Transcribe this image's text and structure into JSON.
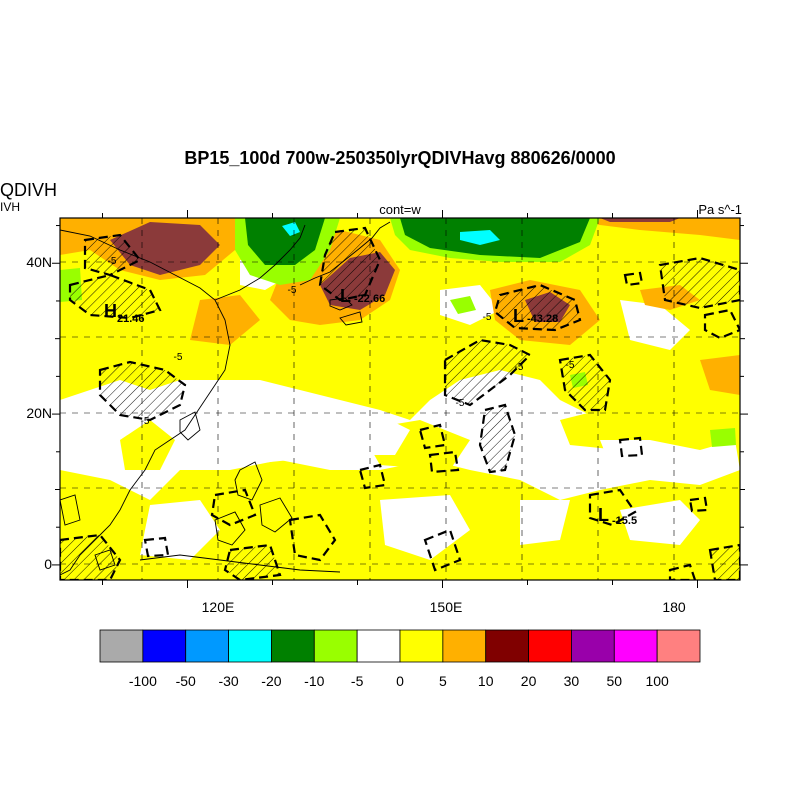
{
  "title": "BP15_100d 700w-250350lyrQDIVHavg  880626/0000",
  "field_label_top": "QDIVH",
  "field_label_sub": "IVH",
  "contour_label": "cont=w",
  "units": "Pa s^-1",
  "axes": {
    "x_ticks": [
      {
        "value": 120,
        "label": "120E"
      },
      {
        "value": 150,
        "label": "150E"
      },
      {
        "value": 180,
        "label": "180"
      }
    ],
    "y_ticks": [
      {
        "value": 0,
        "label": "0"
      },
      {
        "value": 20,
        "label": "20N"
      },
      {
        "value": 40,
        "label": "40N"
      }
    ],
    "lon_range": [
      105,
      185
    ],
    "lat_range": [
      -2,
      46
    ],
    "gridlines": true
  },
  "colorbar": {
    "labels": [
      "-100",
      "-50",
      "-30",
      "-20",
      "-10",
      "-5",
      "0",
      "5",
      "10",
      "20",
      "30",
      "50",
      "100"
    ],
    "colors": [
      "#AAAAAA",
      "#0000FF",
      "#0099FF",
      "#00FFFF",
      "#008000",
      "#99FF00",
      "#FFFFFF",
      "#FFFF00",
      "#FFB000",
      "#800000",
      "#FF0000",
      "#9900AA",
      "#FF00FF",
      "#FF8080"
    ]
  },
  "annotations": [
    {
      "kind": "H",
      "value": "21.46"
    },
    {
      "kind": "L",
      "value": "-22.66"
    },
    {
      "kind": "L",
      "value": "-43.28"
    },
    {
      "kind": "L",
      "value": "-15.5"
    }
  ],
  "contour_value_labels": [
    "-5",
    "-5",
    "-5",
    "-5",
    "-5",
    "-5",
    "-5",
    "-5"
  ]
}
